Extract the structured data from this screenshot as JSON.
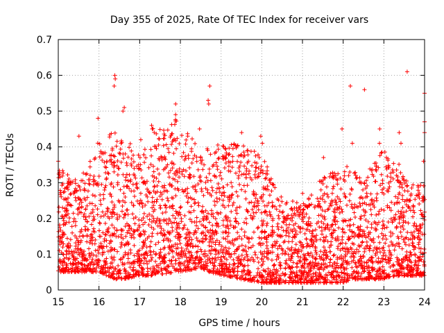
{
  "chart_data": {
    "type": "scatter",
    "title": "Day 355 of 2025, Rate Of TEC Index for receiver vars",
    "xlabel": "GPS time / hours",
    "ylabel": "ROTI / TECUs",
    "xlim": [
      15,
      24
    ],
    "ylim": [
      0,
      0.7
    ],
    "x_ticks": [
      15,
      16,
      17,
      18,
      19,
      20,
      21,
      22,
      23,
      24
    ],
    "y_ticks": [
      0,
      0.1,
      0.2,
      0.3,
      0.4,
      0.5,
      0.6,
      0.7
    ],
    "y_tick_labels": [
      "0",
      "0.1",
      "0.2",
      "0.3",
      "0.4",
      "0.5",
      "0.6",
      "0.7"
    ],
    "grid": true,
    "marker": "+",
    "marker_color": "#ff0000",
    "series_envelope": {
      "name": "ROTI",
      "note": "Dense point cloud; values estimated per hour as [hour, typical_low, typical_high, notable_peaks]",
      "hours": [
        {
          "x": 15.0,
          "low": 0.05,
          "high": 0.35,
          "peaks": [
            0.36
          ]
        },
        {
          "x": 15.5,
          "low": 0.05,
          "high": 0.3,
          "peaks": [
            0.43
          ]
        },
        {
          "x": 16.0,
          "low": 0.05,
          "high": 0.42,
          "peaks": [
            0.48
          ]
        },
        {
          "x": 16.4,
          "low": 0.03,
          "high": 0.45,
          "peaks": [
            0.6,
            0.59,
            0.57
          ]
        },
        {
          "x": 16.6,
          "low": 0.03,
          "high": 0.42,
          "peaks": [
            0.51,
            0.5
          ]
        },
        {
          "x": 17.0,
          "low": 0.04,
          "high": 0.4,
          "peaks": [
            0.42
          ]
        },
        {
          "x": 17.3,
          "low": 0.04,
          "high": 0.45,
          "peaks": [
            0.46,
            0.45
          ]
        },
        {
          "x": 17.9,
          "low": 0.05,
          "high": 0.48,
          "peaks": [
            0.52,
            0.49
          ]
        },
        {
          "x": 18.5,
          "low": 0.06,
          "high": 0.4,
          "peaks": [
            0.45
          ]
        },
        {
          "x": 18.7,
          "low": 0.05,
          "high": 0.4,
          "peaks": [
            0.57,
            0.53,
            0.52
          ]
        },
        {
          "x": 19.5,
          "low": 0.03,
          "high": 0.42,
          "peaks": [
            0.44
          ]
        },
        {
          "x": 20.0,
          "low": 0.02,
          "high": 0.38,
          "peaks": [
            0.43,
            0.41
          ]
        },
        {
          "x": 20.5,
          "low": 0.02,
          "high": 0.25,
          "peaks": [
            0.26
          ]
        },
        {
          "x": 21.0,
          "low": 0.02,
          "high": 0.25,
          "peaks": [
            0.27
          ]
        },
        {
          "x": 21.5,
          "low": 0.02,
          "high": 0.32,
          "peaks": [
            0.37
          ]
        },
        {
          "x": 22.0,
          "low": 0.02,
          "high": 0.35,
          "peaks": [
            0.45
          ]
        },
        {
          "x": 22.2,
          "low": 0.03,
          "high": 0.35,
          "peaks": [
            0.57,
            0.41
          ]
        },
        {
          "x": 22.5,
          "low": 0.03,
          "high": 0.3,
          "peaks": [
            0.56
          ]
        },
        {
          "x": 22.9,
          "low": 0.03,
          "high": 0.4,
          "peaks": [
            0.45,
            0.41
          ]
        },
        {
          "x": 23.4,
          "low": 0.04,
          "high": 0.35,
          "peaks": [
            0.44,
            0.41
          ]
        },
        {
          "x": 23.6,
          "low": 0.04,
          "high": 0.3,
          "peaks": [
            0.61
          ]
        },
        {
          "x": 24.0,
          "low": 0.04,
          "high": 0.3,
          "peaks": [
            0.55,
            0.47,
            0.44,
            0.36
          ]
        }
      ]
    }
  }
}
